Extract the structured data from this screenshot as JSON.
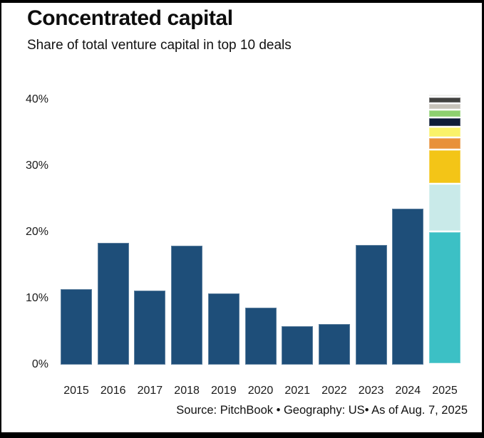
{
  "header": {
    "title": "Concentrated capital",
    "subtitle": "Share of total venture capital in top 10 deals"
  },
  "footer": {
    "source": "Source: PitchBook • Geography: US• As of Aug. 7, 2025"
  },
  "colors": {
    "bar_blue": "#1e4e79",
    "frame_border": "#000000",
    "background": "#ffffff"
  },
  "chart_data": {
    "type": "bar",
    "title": "Concentrated capital",
    "subtitle": "Share of total venture capital in top 10 deals",
    "xlabel": "",
    "ylabel": "",
    "ylim": [
      0,
      42
    ],
    "grid": false,
    "legend": "none",
    "yticks": [
      {
        "value": 0,
        "label": "0%"
      },
      {
        "value": 10,
        "label": "10%"
      },
      {
        "value": 20,
        "label": "20%"
      },
      {
        "value": 30,
        "label": "30%"
      },
      {
        "value": 40,
        "label": "40%"
      }
    ],
    "categories": [
      "2015",
      "2016",
      "2017",
      "2018",
      "2019",
      "2020",
      "2021",
      "2022",
      "2023",
      "2024",
      "2025"
    ],
    "values": [
      11.4,
      18.4,
      11.2,
      18.0,
      10.7,
      8.6,
      5.8,
      6.1,
      18.1,
      23.5,
      40.8
    ],
    "note": "2025 is a stacked bar of the 10 individual top deals, segments listed bottom to top",
    "bars": [
      {
        "year": "2015",
        "total": 11.4,
        "segments": [
          {
            "name": "top-10-share",
            "value": 11.4,
            "color": "#1e4e79"
          }
        ]
      },
      {
        "year": "2016",
        "total": 18.4,
        "segments": [
          {
            "name": "top-10-share",
            "value": 18.4,
            "color": "#1e4e79"
          }
        ]
      },
      {
        "year": "2017",
        "total": 11.2,
        "segments": [
          {
            "name": "top-10-share",
            "value": 11.2,
            "color": "#1e4e79"
          }
        ]
      },
      {
        "year": "2018",
        "total": 18.0,
        "segments": [
          {
            "name": "top-10-share",
            "value": 18.0,
            "color": "#1e4e79"
          }
        ]
      },
      {
        "year": "2019",
        "total": 10.7,
        "segments": [
          {
            "name": "top-10-share",
            "value": 10.7,
            "color": "#1e4e79"
          }
        ]
      },
      {
        "year": "2020",
        "total": 8.6,
        "segments": [
          {
            "name": "top-10-share",
            "value": 8.6,
            "color": "#1e4e79"
          }
        ]
      },
      {
        "year": "2021",
        "total": 5.8,
        "segments": [
          {
            "name": "top-10-share",
            "value": 5.8,
            "color": "#1e4e79"
          }
        ]
      },
      {
        "year": "2022",
        "total": 6.1,
        "segments": [
          {
            "name": "top-10-share",
            "value": 6.1,
            "color": "#1e4e79"
          }
        ]
      },
      {
        "year": "2023",
        "total": 18.1,
        "segments": [
          {
            "name": "top-10-share",
            "value": 18.1,
            "color": "#1e4e79"
          }
        ]
      },
      {
        "year": "2024",
        "total": 23.5,
        "segments": [
          {
            "name": "top-10-share",
            "value": 23.5,
            "color": "#1e4e79"
          }
        ]
      },
      {
        "year": "2025",
        "total": 40.8,
        "segments": [
          {
            "name": "deal-1",
            "value": 20.0,
            "color": "#3cc0c5"
          },
          {
            "name": "deal-2",
            "value": 7.2,
            "color": "#c9eae9"
          },
          {
            "name": "deal-3",
            "value": 5.2,
            "color": "#f3c517"
          },
          {
            "name": "deal-4",
            "value": 1.8,
            "color": "#e8913a"
          },
          {
            "name": "deal-5",
            "value": 1.6,
            "color": "#faf269"
          },
          {
            "name": "deal-6",
            "value": 1.4,
            "color": "#0e1c38"
          },
          {
            "name": "deal-7",
            "value": 1.2,
            "color": "#8dd06f"
          },
          {
            "name": "deal-8",
            "value": 1.0,
            "color": "#c7c3ba"
          },
          {
            "name": "deal-9",
            "value": 1.0,
            "color": "#424240"
          },
          {
            "name": "deal-10",
            "value": 0.4,
            "color": "#eaeae8"
          }
        ]
      }
    ]
  }
}
